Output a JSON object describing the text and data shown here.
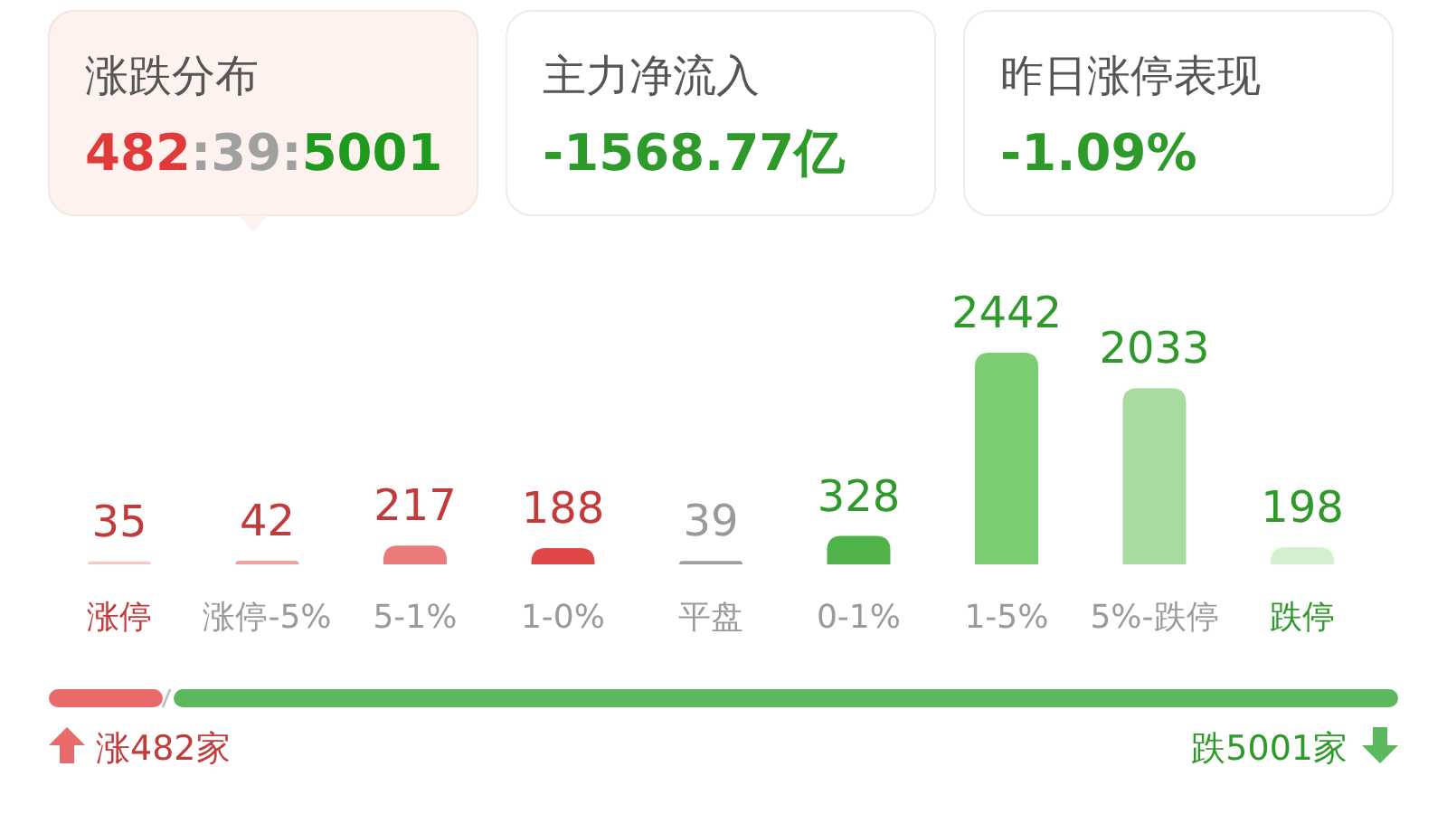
{
  "chart_data": [
    {
      "type": "other",
      "annotations": [
        "涨跌分布",
        "482:39:5001",
        "主力净流入",
        "-1568.77亿",
        "昨日涨停表现",
        "-1.09%"
      ]
    },
    {
      "type": "bar",
      "categories": [
        "涨停",
        "涨停-5%",
        "5-1%",
        "1-0%",
        "平盘",
        "0-1%",
        "1-5%",
        "5%-跌停",
        "跌停"
      ],
      "values": [
        35,
        42,
        217,
        188,
        39,
        328,
        2442,
        2033,
        198
      ],
      "colors": [
        "#f6c9c9",
        "#efa0a0",
        "#eb7b7b",
        "#e04848",
        "#9e9e9e",
        "#4fb34a",
        "#7ccc72",
        "#a8dc9f",
        "#d5f0d0"
      ],
      "data_labels": true
    },
    {
      "type": "other",
      "annotations": [
        "涨482家",
        "跌5001家"
      ]
    }
  ]
}
